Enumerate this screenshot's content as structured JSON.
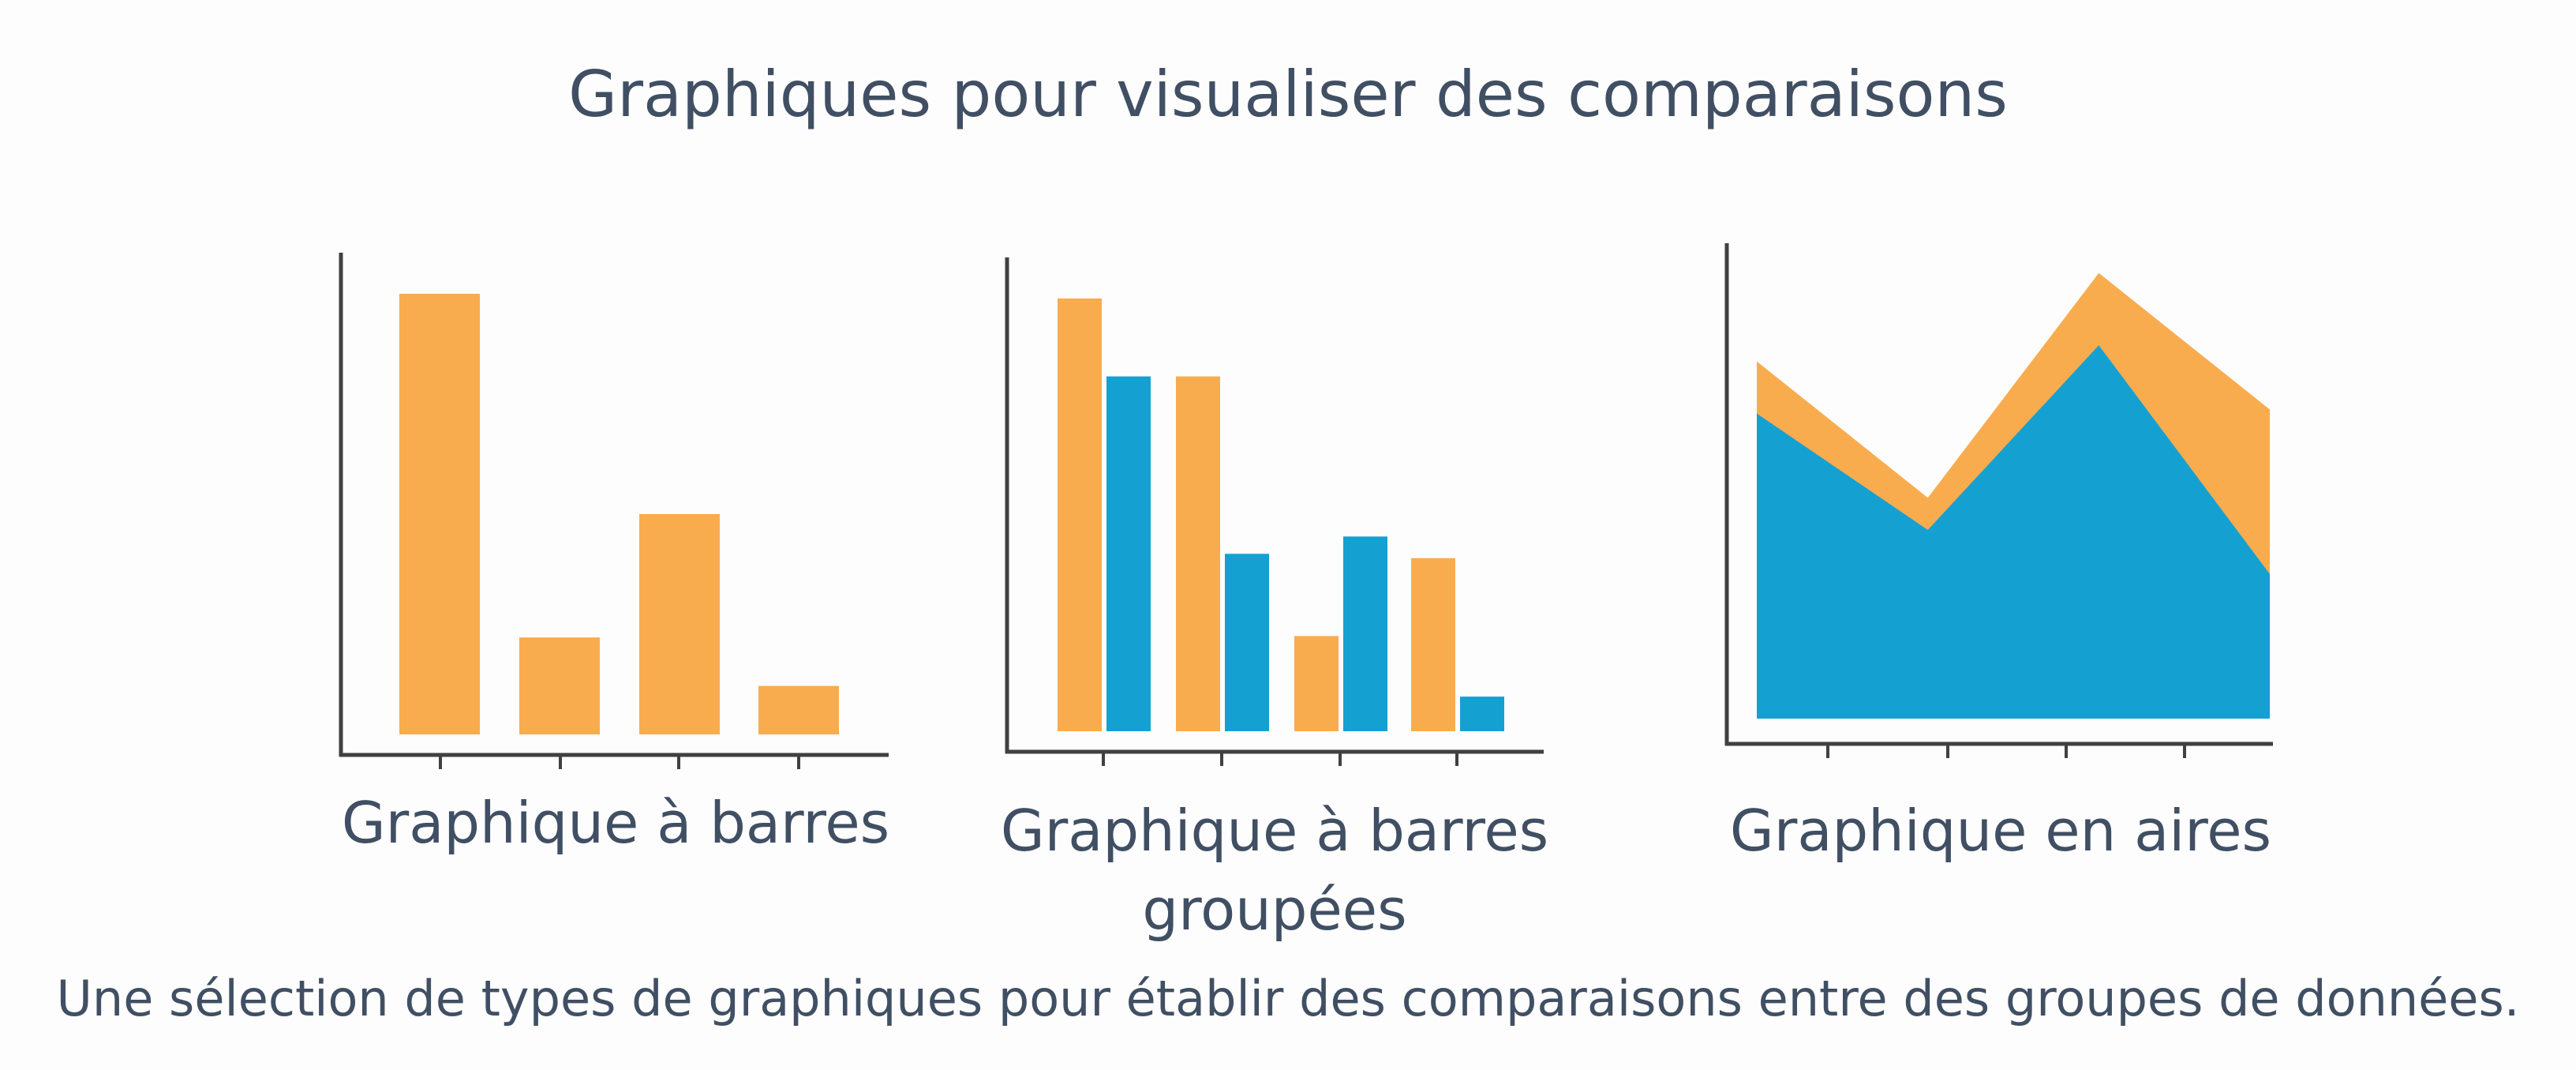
{
  "title": "Graphiques pour visualiser des comparaisons",
  "caption": "Une sélection de types de graphiques pour établir des comparaisons entre des groupes de données.",
  "colors": {
    "orange": "#F9AC4E",
    "blue": "#15A0D2",
    "axis": "#404040",
    "text": "#404F63"
  },
  "chart_data": [
    {
      "type": "bar",
      "label": "Graphique à barres",
      "categories": [
        "",
        "",
        "",
        ""
      ],
      "values": [
        100,
        22,
        50,
        11
      ],
      "ylim": [
        0,
        110
      ],
      "grid": false
    },
    {
      "type": "bar",
      "label": "Graphique à barres groupées",
      "categories": [
        "",
        "",
        "",
        ""
      ],
      "series": [
        {
          "values": [
            100,
            82,
            22,
            40
          ]
        },
        {
          "values": [
            82,
            41,
            45,
            8
          ]
        }
      ],
      "ylim": [
        0,
        110
      ],
      "grid": false
    },
    {
      "type": "area",
      "label": "Graphique en aires",
      "x": [
        0,
        1,
        2,
        3
      ],
      "series": [
        {
          "values": [
            76,
            47,
            93,
            36
          ]
        },
        {
          "values": [
            89,
            55,
            111,
            77
          ]
        }
      ],
      "ylim": [
        0,
        120
      ],
      "grid": false
    }
  ]
}
